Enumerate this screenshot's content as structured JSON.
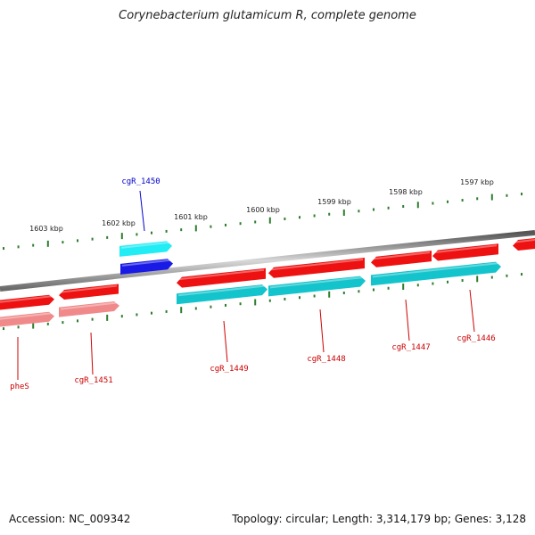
{
  "title": "Corynebacterium glutamicum R, complete genome",
  "footer": {
    "accession": "Accession: NC_009342",
    "topology": "Topology: circular; Length: 3,314,179 bp; Genes: 3,128"
  },
  "colors": {
    "backbone": "#8a8a8a",
    "tick": "#2e7d2e",
    "gene_forward": "#ee1111",
    "gene_forward_light": "#f08a8a",
    "gene_reverse": "#13c4cc",
    "highlight_cyan": "#22ecf4",
    "highlight_blue": "#1a1ae6",
    "label_red": "#cc0000",
    "label_blue": "#0000cc"
  },
  "ruler": {
    "unit": "kbp",
    "ticks": [
      {
        "label": "1603 kbp"
      },
      {
        "label": "1602 kbp"
      },
      {
        "label": "1601 kbp"
      },
      {
        "label": "1600 kbp"
      },
      {
        "label": "1599 kbp"
      },
      {
        "label": "1598 kbp"
      },
      {
        "label": "1597 kbp"
      }
    ]
  },
  "genes": [
    {
      "name": "pheS"
    },
    {
      "name": "cgR_1451"
    },
    {
      "name": "cgR_1450"
    },
    {
      "name": "cgR_1449"
    },
    {
      "name": "cgR_1448"
    },
    {
      "name": "cgR_1447"
    },
    {
      "name": "cgR_1446"
    }
  ]
}
